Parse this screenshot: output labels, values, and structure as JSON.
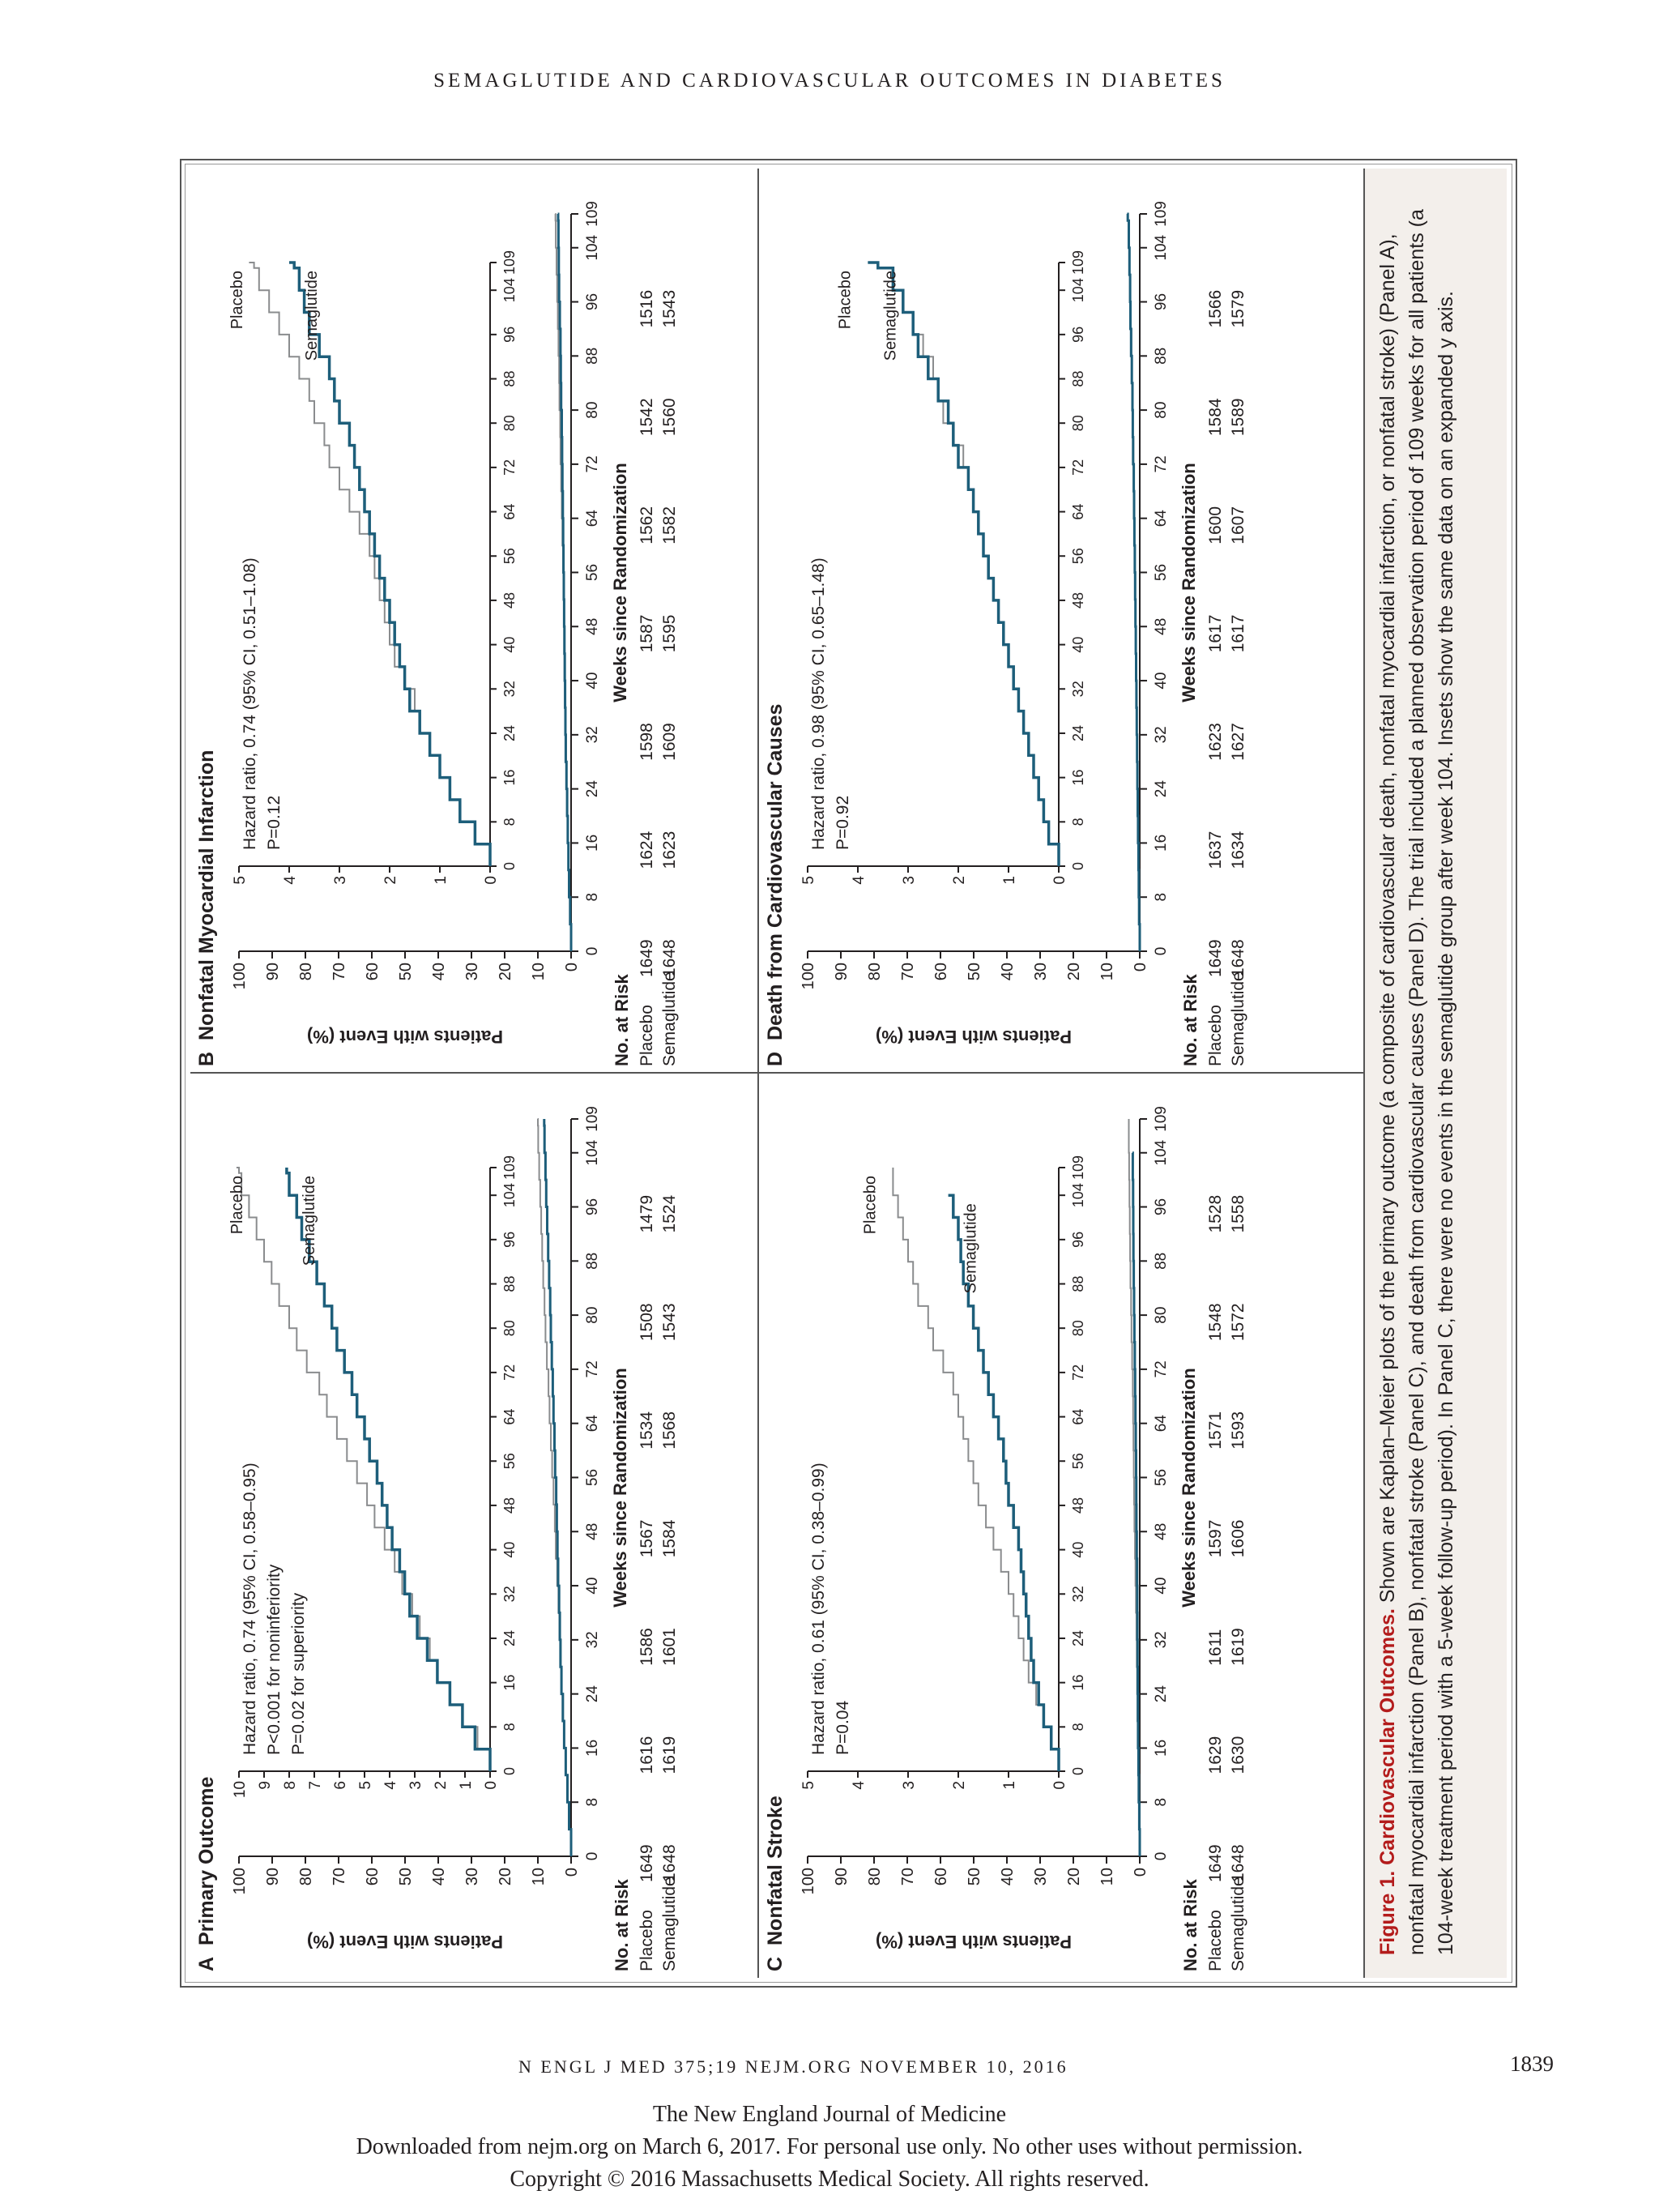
{
  "running_head": "SEMAGLUTIDE AND CARDIOVASCULAR OUTCOMES IN DIABETES",
  "footer": {
    "journal_ref": "N ENGL J MED 375;19   NEJM.ORG   NOVEMBER 10, 2016",
    "page_number": "1839",
    "line1": "The New England Journal of Medicine",
    "line2": "Downloaded from nejm.org on March 6, 2017. For personal use only. No other uses without permission.",
    "line3": "Copyright © 2016 Massachusetts Medical Society. All rights reserved."
  },
  "caption": {
    "title": "Figure 1. Cardiovascular Outcomes.",
    "text": "Shown are Kaplan–Meier plots of the primary outcome (a composite of cardiovascular death, nonfatal myocardial infarction, or nonfatal stroke) (Panel A), nonfatal myocardial infarction (Panel B), nonfatal stroke (Panel C), and death from cardiovascular causes (Panel D). The trial included a planned observation period of 109 weeks for all patients (a 104-week treatment period with a 5-week follow-up period). In Panel C, there were no events in the semaglutide group after week 104. Insets show the same data on an expanded y axis."
  },
  "colors": {
    "placebo": "#8a8c8e",
    "semaglutide": "#1d5e7a"
  },
  "chart_data": [
    {
      "type": "line",
      "letter": "A",
      "title": "Primary Outcome",
      "ylabel": "Patients with Event (%)",
      "xlabel": "Weeks since Randomization",
      "main_ylim": [
        0,
        100
      ],
      "main_yticks": [
        "0",
        "10",
        "20",
        "30",
        "40",
        "50",
        "60",
        "70",
        "80",
        "90",
        "100"
      ],
      "inset_ylim": [
        0,
        10
      ],
      "inset_yticks": [
        "0",
        "1",
        "2",
        "3",
        "4",
        "5",
        "6",
        "7",
        "8",
        "9",
        "10"
      ],
      "xlim": [
        0,
        109
      ],
      "xticks": [
        "0",
        "8",
        "16",
        "24",
        "32",
        "40",
        "48",
        "56",
        "64",
        "72",
        "80",
        "88",
        "96",
        "104",
        "109"
      ],
      "annotations": [
        "Hazard ratio, 0.74 (95% CI, 0.58–0.95)",
        "P<0.001 for noninferiority",
        "P=0.02 for superiority"
      ],
      "series": [
        {
          "name": "Placebo",
          "x": [
            0,
            4,
            8,
            12,
            16,
            20,
            24,
            28,
            32,
            36,
            40,
            44,
            48,
            52,
            56,
            60,
            64,
            68,
            72,
            76,
            80,
            84,
            88,
            92,
            96,
            100,
            104,
            108,
            109
          ],
          "y": [
            0,
            0.5,
            1.1,
            1.6,
            2.1,
            2.4,
            2.8,
            3.1,
            3.5,
            3.8,
            4.2,
            4.6,
            4.9,
            5.3,
            5.7,
            6.1,
            6.5,
            6.8,
            7.3,
            7.7,
            8.0,
            8.4,
            8.7,
            9.0,
            9.3,
            9.6,
            9.9,
            10.0,
            10.1
          ]
        },
        {
          "name": "Semaglutide",
          "x": [
            0,
            4,
            8,
            12,
            16,
            20,
            24,
            28,
            32,
            36,
            40,
            44,
            48,
            52,
            56,
            60,
            64,
            68,
            72,
            76,
            80,
            84,
            88,
            92,
            96,
            100,
            104,
            108,
            109
          ],
          "y": [
            0,
            0.6,
            1.1,
            1.6,
            2.1,
            2.5,
            2.9,
            3.2,
            3.4,
            3.6,
            3.9,
            4.1,
            4.3,
            4.5,
            4.8,
            5.0,
            5.3,
            5.5,
            5.8,
            6.1,
            6.3,
            6.6,
            6.9,
            7.2,
            7.5,
            7.7,
            8.0,
            8.1,
            8.1
          ]
        }
      ],
      "risk": {
        "heading": "No. at Risk",
        "weeks": [
          "0",
          "16",
          "32",
          "48",
          "64",
          "80",
          "96"
        ],
        "rows": [
          {
            "label": "Placebo",
            "values": [
              "1649",
              "1616",
              "1586",
              "1567",
              "1534",
              "1508",
              "1479"
            ]
          },
          {
            "label": "Semaglutide",
            "values": [
              "1648",
              "1619",
              "1601",
              "1584",
              "1568",
              "1543",
              "1524"
            ]
          }
        ]
      }
    },
    {
      "type": "line",
      "letter": "B",
      "title": "Nonfatal Myocardial Infarction",
      "ylabel": "Patients with Event (%)",
      "xlabel": "Weeks since Randomization",
      "main_ylim": [
        0,
        100
      ],
      "main_yticks": [
        "0",
        "10",
        "20",
        "30",
        "40",
        "50",
        "60",
        "70",
        "80",
        "90",
        "100"
      ],
      "inset_ylim": [
        0,
        5
      ],
      "inset_yticks": [
        "0",
        "1",
        "2",
        "3",
        "4",
        "5"
      ],
      "xlim": [
        0,
        109
      ],
      "xticks": [
        "0",
        "8",
        "16",
        "24",
        "32",
        "40",
        "48",
        "56",
        "64",
        "72",
        "80",
        "88",
        "96",
        "104",
        "109"
      ],
      "annotations": [
        "Hazard ratio, 0.74 (95% CI, 0.51–1.08)",
        "P=0.12"
      ],
      "series": [
        {
          "name": "Placebo",
          "x": [
            0,
            4,
            8,
            12,
            16,
            20,
            24,
            28,
            32,
            36,
            40,
            44,
            48,
            52,
            56,
            60,
            64,
            68,
            72,
            76,
            80,
            84,
            88,
            92,
            96,
            100,
            104,
            108,
            109
          ],
          "y": [
            0,
            0.3,
            0.6,
            0.8,
            1.0,
            1.2,
            1.4,
            1.5,
            1.7,
            1.9,
            2.0,
            2.1,
            2.2,
            2.3,
            2.4,
            2.6,
            2.8,
            3.0,
            3.2,
            3.3,
            3.5,
            3.6,
            3.8,
            4.0,
            4.2,
            4.4,
            4.6,
            4.7,
            4.8
          ]
        },
        {
          "name": "Semaglutide",
          "x": [
            0,
            4,
            8,
            12,
            16,
            20,
            24,
            28,
            32,
            36,
            40,
            44,
            48,
            52,
            56,
            60,
            64,
            68,
            72,
            76,
            80,
            84,
            88,
            92,
            96,
            100,
            104,
            108,
            109
          ],
          "y": [
            0,
            0.3,
            0.6,
            0.8,
            1.0,
            1.2,
            1.4,
            1.6,
            1.7,
            1.8,
            1.9,
            2.0,
            2.1,
            2.2,
            2.3,
            2.4,
            2.5,
            2.6,
            2.7,
            2.8,
            3.0,
            3.1,
            3.2,
            3.4,
            3.6,
            3.7,
            3.8,
            3.9,
            4.0
          ]
        }
      ],
      "risk": {
        "heading": "No. at Risk",
        "weeks": [
          "0",
          "16",
          "32",
          "48",
          "64",
          "80",
          "96"
        ],
        "rows": [
          {
            "label": "Placebo",
            "values": [
              "1649",
              "1624",
              "1598",
              "1587",
              "1562",
              "1542",
              "1516"
            ]
          },
          {
            "label": "Semaglutide",
            "values": [
              "1648",
              "1623",
              "1609",
              "1595",
              "1582",
              "1560",
              "1543"
            ]
          }
        ]
      }
    },
    {
      "type": "line",
      "letter": "C",
      "title": "Nonfatal Stroke",
      "ylabel": "Patients with Event (%)",
      "xlabel": "Weeks since Randomization",
      "main_ylim": [
        0,
        100
      ],
      "main_yticks": [
        "0",
        "10",
        "20",
        "30",
        "40",
        "50",
        "60",
        "70",
        "80",
        "90",
        "100"
      ],
      "inset_ylim": [
        0,
        5
      ],
      "inset_yticks": [
        "0",
        "1",
        "2",
        "3",
        "4",
        "5"
      ],
      "xlim": [
        0,
        109
      ],
      "xticks": [
        "0",
        "8",
        "16",
        "24",
        "32",
        "40",
        "48",
        "56",
        "64",
        "72",
        "80",
        "88",
        "96",
        "104",
        "109"
      ],
      "annotations": [
        "Hazard ratio, 0.61 (95% CI, 0.38–0.99)",
        "P=0.04"
      ],
      "series": [
        {
          "name": "Placebo",
          "x": [
            0,
            4,
            8,
            12,
            16,
            20,
            24,
            28,
            32,
            36,
            40,
            44,
            48,
            52,
            56,
            60,
            64,
            68,
            72,
            76,
            80,
            84,
            88,
            92,
            96,
            100,
            104,
            108,
            109
          ],
          "y": [
            0,
            0.15,
            0.3,
            0.45,
            0.6,
            0.7,
            0.8,
            0.9,
            1.0,
            1.15,
            1.3,
            1.45,
            1.6,
            1.7,
            1.8,
            1.9,
            2.0,
            2.1,
            2.3,
            2.5,
            2.6,
            2.8,
            2.9,
            3.0,
            3.1,
            3.2,
            3.3,
            3.3,
            3.3
          ]
        },
        {
          "name": "Semaglutide",
          "x": [
            0,
            4,
            8,
            12,
            16,
            20,
            24,
            28,
            32,
            36,
            40,
            44,
            48,
            52,
            56,
            60,
            64,
            68,
            72,
            76,
            80,
            84,
            88,
            92,
            96,
            100,
            104
          ],
          "y": [
            0,
            0.15,
            0.3,
            0.4,
            0.5,
            0.55,
            0.6,
            0.65,
            0.7,
            0.75,
            0.8,
            0.9,
            1.0,
            1.05,
            1.1,
            1.2,
            1.3,
            1.4,
            1.5,
            1.6,
            1.7,
            1.8,
            1.9,
            1.95,
            2.0,
            2.1,
            2.2
          ]
        }
      ],
      "risk": {
        "heading": "No. at Risk",
        "weeks": [
          "0",
          "16",
          "32",
          "48",
          "64",
          "80",
          "96"
        ],
        "rows": [
          {
            "label": "Placebo",
            "values": [
              "1649",
              "1629",
              "1611",
              "1597",
              "1571",
              "1548",
              "1528"
            ]
          },
          {
            "label": "Semaglutide",
            "values": [
              "1648",
              "1630",
              "1619",
              "1606",
              "1593",
              "1572",
              "1558"
            ]
          }
        ]
      }
    },
    {
      "type": "line",
      "letter": "D",
      "title": "Death from Cardiovascular Causes",
      "ylabel": "Patients with Event (%)",
      "xlabel": "Weeks since Randomization",
      "main_ylim": [
        0,
        100
      ],
      "main_yticks": [
        "0",
        "10",
        "20",
        "30",
        "40",
        "50",
        "60",
        "70",
        "80",
        "90",
        "100"
      ],
      "inset_ylim": [
        0,
        5
      ],
      "inset_yticks": [
        "0",
        "1",
        "2",
        "3",
        "4",
        "5"
      ],
      "xlim": [
        0,
        109
      ],
      "xticks": [
        "0",
        "8",
        "16",
        "24",
        "32",
        "40",
        "48",
        "56",
        "64",
        "72",
        "80",
        "88",
        "96",
        "104",
        "109"
      ],
      "annotations": [
        "Hazard ratio, 0.98 (95% CI, 0.65–1.48)",
        "P=0.92"
      ],
      "series": [
        {
          "name": "Placebo",
          "x": [
            0,
            4,
            8,
            12,
            16,
            20,
            24,
            28,
            32,
            36,
            40,
            44,
            48,
            52,
            56,
            60,
            64,
            68,
            72,
            76,
            80,
            84,
            88,
            92,
            96,
            100,
            104,
            108,
            109
          ],
          "y": [
            0,
            0.2,
            0.3,
            0.4,
            0.5,
            0.6,
            0.7,
            0.8,
            0.9,
            1.0,
            1.1,
            1.2,
            1.3,
            1.4,
            1.5,
            1.6,
            1.7,
            1.8,
            1.9,
            2.1,
            2.3,
            2.4,
            2.5,
            2.7,
            2.9,
            3.1,
            3.3,
            3.6,
            3.8
          ]
        },
        {
          "name": "Semaglutide",
          "x": [
            0,
            4,
            8,
            12,
            16,
            20,
            24,
            28,
            32,
            36,
            40,
            44,
            48,
            52,
            56,
            60,
            64,
            68,
            72,
            76,
            80,
            84,
            88,
            92,
            96,
            100,
            104,
            108,
            109
          ],
          "y": [
            0,
            0.2,
            0.3,
            0.4,
            0.5,
            0.6,
            0.7,
            0.8,
            0.9,
            1.0,
            1.1,
            1.2,
            1.3,
            1.4,
            1.5,
            1.6,
            1.7,
            1.8,
            2.0,
            2.1,
            2.2,
            2.4,
            2.6,
            2.8,
            2.9,
            3.1,
            3.3,
            3.6,
            3.8
          ]
        }
      ],
      "risk": {
        "heading": "No. at Risk",
        "weeks": [
          "0",
          "16",
          "32",
          "48",
          "64",
          "80",
          "96"
        ],
        "rows": [
          {
            "label": "Placebo",
            "values": [
              "1649",
              "1637",
              "1623",
              "1617",
              "1600",
              "1584",
              "1566"
            ]
          },
          {
            "label": "Semaglutide",
            "values": [
              "1648",
              "1634",
              "1627",
              "1617",
              "1607",
              "1589",
              "1579"
            ]
          }
        ]
      }
    }
  ]
}
